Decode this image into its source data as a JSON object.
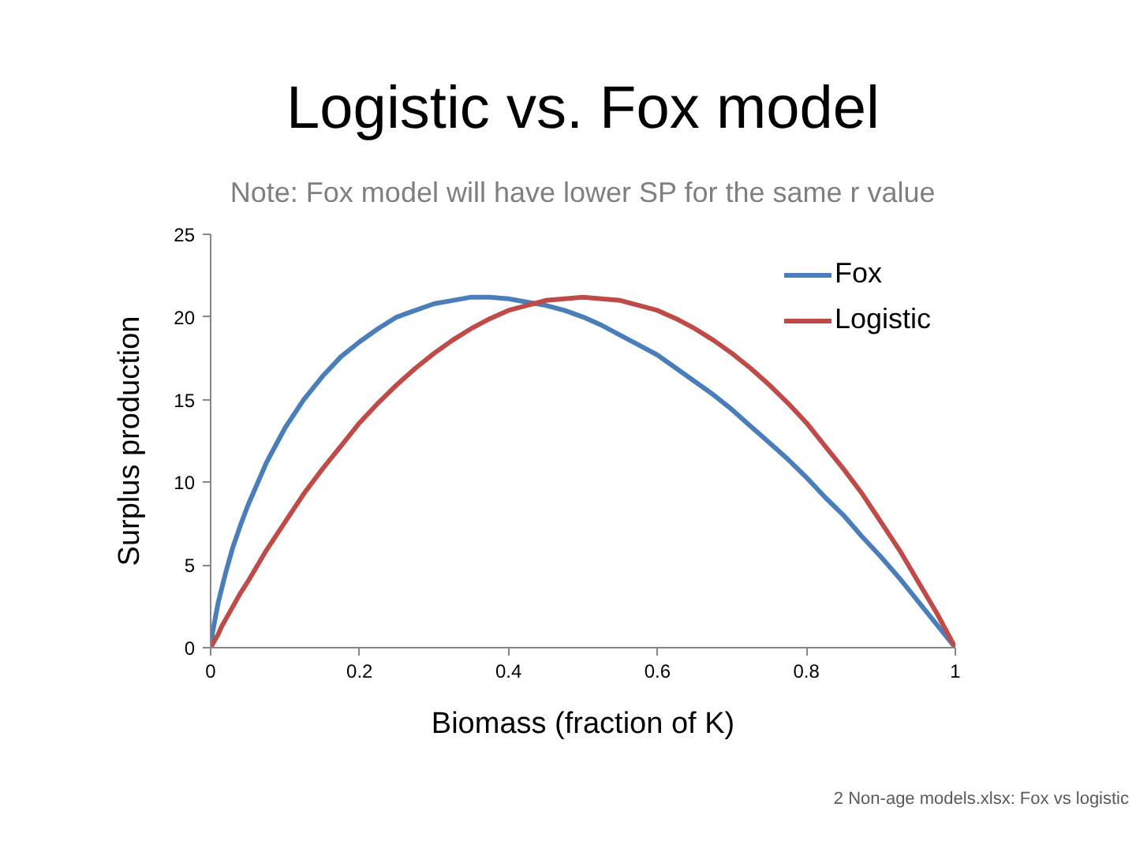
{
  "chart_data": {
    "type": "line",
    "title": "Logistic vs. Fox model",
    "subtitle": "Note: Fox model will have lower SP for the same r value",
    "xlabel": "Biomass (fraction of K)",
    "ylabel": "Surplus production",
    "annotations": [
      "2 Non-age models.xlsx: Fox vs logistic"
    ],
    "x": [
      0,
      0.0025,
      0.005,
      0.01,
      0.015,
      0.02,
      0.03,
      0.04,
      0.05,
      0.075,
      0.1,
      0.125,
      0.15,
      0.175,
      0.2,
      0.225,
      0.25,
      0.275,
      0.3,
      0.325,
      0.35,
      0.375,
      0.4,
      0.425,
      0.45,
      0.475,
      0.5,
      0.525,
      0.55,
      0.575,
      0.6,
      0.625,
      0.65,
      0.675,
      0.7,
      0.725,
      0.75,
      0.775,
      0.8,
      0.825,
      0.85,
      0.875,
      0.9,
      0.925,
      0.95,
      0.975,
      1
    ],
    "series": [
      {
        "name": "Fox",
        "color": "#4a7ebb",
        "values": [
          0,
          0.9,
          1.5,
          2.7,
          3.6,
          4.5,
          6.1,
          7.4,
          8.6,
          11.2,
          13.3,
          15.0,
          16.4,
          17.6,
          18.5,
          19.3,
          20.0,
          20.4,
          20.8,
          21.0,
          21.2,
          21.2,
          21.1,
          20.9,
          20.7,
          20.4,
          20.0,
          19.5,
          18.9,
          18.3,
          17.7,
          16.9,
          16.1,
          15.3,
          14.4,
          13.4,
          12.4,
          11.4,
          10.3,
          9.1,
          8.0,
          6.7,
          5.5,
          4.2,
          2.8,
          1.4,
          0
        ]
      },
      {
        "name": "Logistic",
        "color": "#be4b48",
        "values": [
          0,
          0.2,
          0.4,
          0.8,
          1.3,
          1.7,
          2.5,
          3.3,
          4.0,
          5.9,
          7.6,
          9.3,
          10.8,
          12.2,
          13.6,
          14.8,
          15.9,
          16.9,
          17.8,
          18.6,
          19.3,
          19.9,
          20.4,
          20.7,
          21.0,
          21.1,
          21.2,
          21.1,
          21.0,
          20.7,
          20.4,
          19.9,
          19.3,
          18.6,
          17.8,
          16.9,
          15.9,
          14.8,
          13.6,
          12.2,
          10.8,
          9.3,
          7.6,
          5.9,
          4.0,
          2.1,
          0
        ]
      }
    ],
    "xlim": [
      0,
      1
    ],
    "ylim": [
      0,
      25
    ],
    "xticks": [
      0,
      0.2,
      0.4,
      0.6,
      0.8,
      1
    ],
    "yticks": [
      0,
      5,
      10,
      15,
      20,
      25
    ],
    "grid": false,
    "legend": "top right",
    "line_style": "solid"
  }
}
